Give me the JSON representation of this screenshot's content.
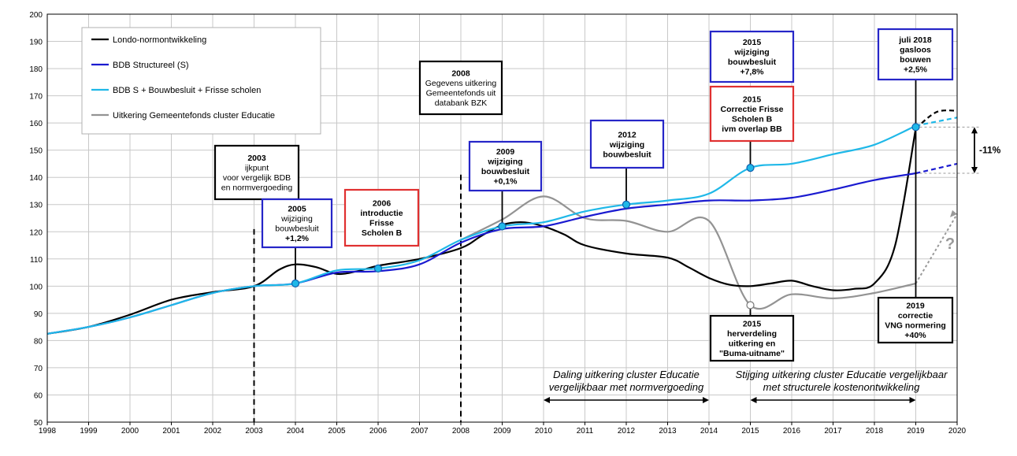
{
  "chart_data": {
    "type": "line",
    "x_ticks": [
      "1998",
      "1999",
      "2000",
      "2001",
      "2002",
      "2003",
      "2004",
      "2005",
      "2006",
      "2007",
      "2008",
      "2009",
      "2010",
      "2011",
      "2012",
      "2013",
      "2014",
      "2015",
      "2016",
      "2017",
      "2018",
      "2019",
      "2020"
    ],
    "y_ticks": [
      "50",
      "60",
      "70",
      "80",
      "90",
      "100",
      "110",
      "120",
      "130",
      "140",
      "150",
      "160",
      "170",
      "180",
      "190",
      "200"
    ],
    "xlim": [
      1998,
      2020
    ],
    "ylim": [
      50,
      200
    ],
    "grid": true,
    "legend_position": "top-left",
    "series": [
      {
        "name": "Londo-normontwikkeling",
        "color": "#000000",
        "x": [
          1998,
          1999,
          2000,
          2001,
          2002,
          2003,
          2003.6,
          2004,
          2004.5,
          2005,
          2005.5,
          2006,
          2007,
          2008,
          2008.5,
          2009,
          2009.5,
          2010,
          2010.5,
          2011,
          2012,
          2013,
          2013.5,
          2014,
          2014.5,
          2015,
          2015.5,
          2016,
          2016.5,
          2017,
          2017.5,
          2018,
          2018.5,
          2019
        ],
        "y": [
          82.5,
          85,
          89.5,
          95,
          97.8,
          100,
          106,
          108,
          107,
          104.5,
          105.5,
          107.5,
          110,
          114,
          118.5,
          122.5,
          123.5,
          122,
          119,
          115,
          112,
          110.5,
          107,
          103,
          100.5,
          100,
          101,
          102,
          100,
          98.5,
          99,
          101,
          115,
          158
        ],
        "projection": {
          "x": [
            2019,
            2019.5,
            2020
          ],
          "y": [
            158,
            164,
            164.5
          ]
        }
      },
      {
        "name": "BDB Structureel (S)",
        "color": "#1a1ad0",
        "x": [
          1998,
          1999,
          2000,
          2001,
          2002,
          2003,
          2004,
          2005,
          2006,
          2007,
          2008,
          2009,
          2010,
          2011,
          2012,
          2013,
          2014,
          2015,
          2016,
          2017,
          2018,
          2019
        ],
        "y": [
          82.5,
          85,
          88.5,
          93,
          97.5,
          100,
          101,
          105,
          105.5,
          108,
          116,
          121,
          122,
          125.5,
          128.5,
          130,
          131.5,
          131.5,
          132.5,
          135.5,
          139,
          141.5
        ],
        "projection": {
          "x": [
            2019,
            2020
          ],
          "y": [
            141.5,
            145
          ]
        }
      },
      {
        "name": "BDB S + Bouwbesluit + Frisse scholen",
        "color": "#1fb8e8",
        "x": [
          1998,
          1999,
          2000,
          2001,
          2002,
          2003,
          2004,
          2005,
          2006,
          2007,
          2008,
          2009,
          2010,
          2011,
          2012,
          2013,
          2014,
          2015,
          2016,
          2017,
          2018,
          2019
        ],
        "y": [
          82.5,
          85,
          88.5,
          93,
          97.5,
          100,
          101,
          105.8,
          106.5,
          109.5,
          117,
          122,
          123.5,
          127.5,
          130,
          131.5,
          134,
          143.5,
          145,
          148.5,
          152,
          159
        ],
        "projection": {
          "x": [
            2019,
            2020
          ],
          "y": [
            159,
            162
          ]
        }
      },
      {
        "name": "Uitkering Gemeentefonds cluster Educatie",
        "color": "#939393",
        "x": [
          2008,
          2009,
          2010,
          2011,
          2012,
          2013,
          2014,
          2015,
          2016,
          2017,
          2018,
          2019
        ],
        "y": [
          117,
          124.5,
          133,
          125,
          124,
          120,
          124,
          93,
          97,
          95.5,
          97.5,
          101
        ],
        "projection": {
          "x": [
            2019,
            2020
          ],
          "y": [
            101,
            126.5
          ]
        }
      }
    ],
    "markers": [
      {
        "series": "BDB Structureel (S)",
        "x": 2004,
        "y": 101,
        "label": "2005 wijziging bouwbesluit +1,2%"
      },
      {
        "series": "BDB S + Bouwbesluit + Frisse scholen",
        "x": 2006,
        "y": 106.5,
        "label": "2006 introductie Frisse Scholen B"
      },
      {
        "series": "BDB S + Bouwbesluit + Frisse scholen",
        "x": 2009,
        "y": 122,
        "label": "2009 wijziging bouwbesluit +0,1%"
      },
      {
        "series": "BDB S + Bouwbesluit + Frisse scholen",
        "x": 2012,
        "y": 130,
        "label": "2012 wijziging bouwbesluit"
      },
      {
        "series": "BDB S + Bouwbesluit + Frisse scholen",
        "x": 2015,
        "y": 143.5,
        "label": "2015 Correctie Frisse Scholen B ivm overlap BB"
      },
      {
        "series": "BDB S + Bouwbesluit + Frisse scholen",
        "x": 2019,
        "y": 158.5,
        "label": "juli 2018 gasloos bouwen +2,5%"
      },
      {
        "series": "Uitkering Gemeentefonds cluster Educatie",
        "x": 2015,
        "y": 93,
        "label": "2015 herverdeling uitkering en \"Buma-uitname\""
      }
    ],
    "vlines_dashed": [
      2003,
      2008
    ],
    "annotations": {
      "box_2003": [
        "2003",
        "ijkpunt",
        "voor vergelijk  BDB",
        "en normvergoeding"
      ],
      "box_2005": [
        "2005",
        "wijziging",
        "bouwbesluit",
        "+1,2%"
      ],
      "box_2006": [
        "2006",
        "introductie",
        "Frisse",
        "Scholen B"
      ],
      "box_2008": [
        "2008",
        "Gegevens uitkering",
        "Gemeentefonds uit",
        "databank BZK"
      ],
      "box_2009": [
        "2009",
        "wijziging",
        "bouwbesluit",
        "+0,1%"
      ],
      "box_2012": [
        "2012",
        "wijziging",
        "bouwbesluit"
      ],
      "box_2015_bb": [
        "2015",
        "wijziging",
        "bouwbesluit",
        "+7,8%"
      ],
      "box_2015_correctie": [
        "2015",
        "Correctie Frisse",
        "Scholen B",
        "ivm overlap BB"
      ],
      "box_2015_herv": [
        "2015",
        "herverdeling",
        "uitkering en",
        "\"Buma-uitname\""
      ],
      "box_2018": [
        "juli 2018",
        "gasloos",
        "bouwen",
        "+2,5%"
      ],
      "box_2019": [
        "2019",
        "correctie",
        "VNG normering",
        "+40%"
      ],
      "text_daling": [
        "Daling uitkering cluster Educatie",
        "vergelijkbaar met normvergoeding"
      ],
      "text_stijging": [
        "Stijging uitkering cluster Educatie vergelijkbaar",
        "met structurele kostenontwikkeling"
      ],
      "gap_label": "-11%",
      "question": "?"
    }
  }
}
